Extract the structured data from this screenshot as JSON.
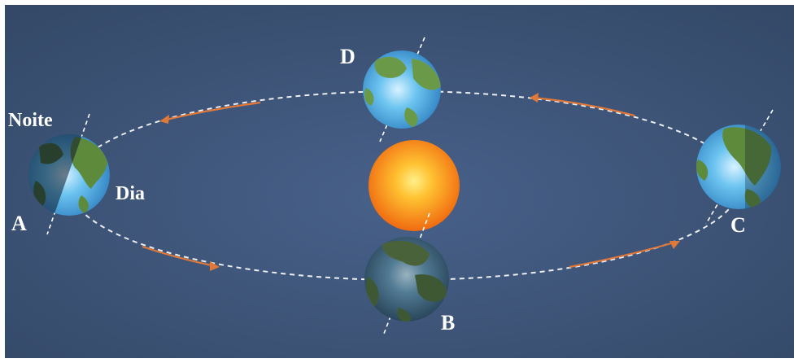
{
  "labels": {
    "night": "Noite",
    "day": "Dia",
    "a": "A",
    "b": "B",
    "c": "C",
    "d": "D"
  },
  "colors": {
    "background": "#3d5476",
    "orbit": "#ffffff",
    "arrow": "#e0783a",
    "sun_center": "#fff08a",
    "sun_edge": "#f06a10",
    "ocean": "#3da0e0",
    "land": "#5e8a3c"
  },
  "icons": {
    "sun": "sun-icon",
    "earth": "earth-globe-icon",
    "direction": "arrowhead-icon"
  }
}
